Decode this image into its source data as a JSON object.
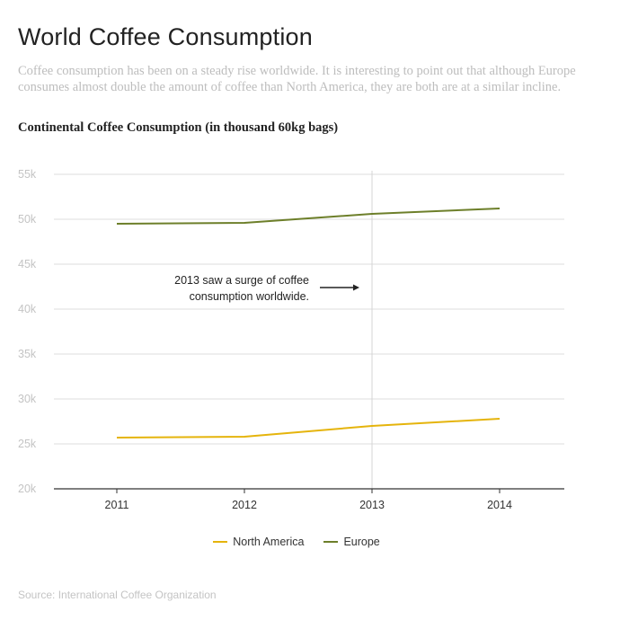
{
  "title": "World Coffee Consumption",
  "subtitle": "Coffee consumption has been on a steady rise worldwide.  It is interesting to point out that although Europe consumes almost double the amount of coffee than North America, they are both are at a similar incline.",
  "source": "Source: International Coffee Organization",
  "chart_data": {
    "type": "line",
    "title": "Continental Coffee Consumption (in thousand 60kg bags)",
    "xlabel": "",
    "ylabel": "",
    "categories": [
      "2011",
      "2012",
      "2013",
      "2014"
    ],
    "ylim": [
      20000,
      55000
    ],
    "yticks": [
      "20k",
      "25k",
      "30k",
      "35k",
      "40k",
      "45k",
      "50k",
      "55k"
    ],
    "grid": true,
    "legend_position": "bottom",
    "series": [
      {
        "name": "North America",
        "color": "#e5b40c",
        "values": [
          25700,
          25800,
          27000,
          27800
        ]
      },
      {
        "name": "Europe",
        "color": "#6d7f2a",
        "values": [
          49500,
          49600,
          50600,
          51200
        ]
      }
    ],
    "annotation": {
      "lines": [
        "2013 saw a surge of coffee",
        "consumption worldwide."
      ],
      "x_category": "2013"
    }
  }
}
